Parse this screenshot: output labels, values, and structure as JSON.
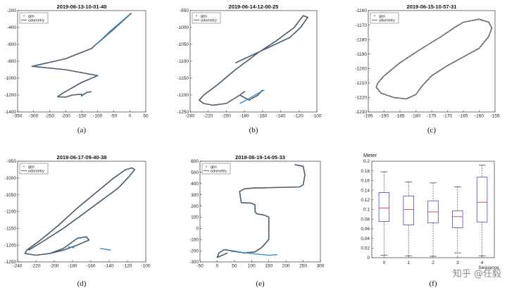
{
  "watermark": "知乎 @任毅",
  "chart_data": [
    {
      "type": "line",
      "caption": "(a)",
      "title": "2019-06-13-10-01-40",
      "legend": {
        "entries": [
          "gps",
          "odometry"
        ],
        "placement": "top-left"
      },
      "xlim": [
        -350,
        50
      ],
      "ylim": [
        -1400,
        -200
      ],
      "xticks": [
        -350,
        -300,
        -250,
        -200,
        -150,
        -100,
        -50,
        0,
        50
      ],
      "yticks": [
        -1400,
        -1200,
        -1000,
        -800,
        -600,
        -400,
        -200
      ],
      "series": [
        {
          "style": "odometry",
          "points": [
            [
              5,
              -230
            ],
            [
              -50,
              -420
            ],
            [
              -120,
              -650
            ],
            [
              -200,
              -770
            ],
            [
              -305,
              -860
            ],
            [
              -200,
              -900
            ],
            [
              -100,
              -970
            ],
            [
              -150,
              -1050
            ],
            [
              -210,
              -1180
            ],
            [
              -225,
              -1220
            ],
            [
              -200,
              -1225
            ],
            [
              -180,
              -1200
            ],
            [
              -150,
              -1190
            ],
            [
              -150,
              -1210
            ],
            [
              -135,
              -1170
            ],
            [
              -120,
              -1160
            ]
          ]
        },
        {
          "style": "gps",
          "points": [
            [
              0,
              -245
            ],
            [
              -60,
              -440
            ],
            [
              -110,
              -620
            ]
          ]
        }
      ]
    },
    {
      "type": "line",
      "caption": "(b)",
      "title": "2019-06-14-12-00-25",
      "legend": {
        "entries": [
          "gps",
          "odometry"
        ],
        "placement": "top-left"
      },
      "xlim": [
        -240,
        -100
      ],
      "ylim": [
        -1250,
        -950
      ],
      "xticks": [
        -240,
        -220,
        -200,
        -180,
        -160,
        -140,
        -120,
        -100
      ],
      "yticks": [
        -1250,
        -1200,
        -1150,
        -1100,
        -1050,
        -1000,
        -950
      ],
      "series": [
        {
          "style": "odometry",
          "points": [
            [
              -190,
              -1105
            ],
            [
              -170,
              -1080
            ],
            [
              -150,
              -1055
            ],
            [
              -130,
              -1030
            ],
            [
              -118,
              -1000
            ],
            [
              -110,
              -970
            ],
            [
              -115,
              -965
            ],
            [
              -118,
              -975
            ],
            [
              -125,
              -1000
            ],
            [
              -145,
              -1040
            ],
            [
              -165,
              -1075
            ],
            [
              -190,
              -1125
            ],
            [
              -210,
              -1170
            ],
            [
              -225,
              -1200
            ],
            [
              -230,
              -1215
            ],
            [
              -225,
              -1225
            ],
            [
              -215,
              -1230
            ],
            [
              -200,
              -1225
            ],
            [
              -185,
              -1200
            ],
            [
              -180,
              -1190
            ],
            [
              -185,
              -1200
            ],
            [
              -175,
              -1215
            ],
            [
              -165,
              -1200
            ],
            [
              -160,
              -1185
            ]
          ]
        },
        {
          "style": "gps",
          "points": [
            [
              -185,
              -1225
            ],
            [
              -175,
              -1210
            ],
            [
              -165,
              -1195
            ],
            [
              -158,
              -1185
            ]
          ]
        }
      ]
    },
    {
      "type": "line",
      "caption": "(c)",
      "title": "2019-06-15-10-57-31",
      "legend": {
        "entries": [
          "gps",
          "odometry"
        ],
        "placement": "top-left"
      },
      "xlim": [
        -195,
        -155
      ],
      "ylim": [
        -1230,
        -1160
      ],
      "xticks": [
        -195,
        -190,
        -185,
        -180,
        -175,
        -170,
        -165,
        -160,
        -155
      ],
      "yticks": [
        -1230,
        -1220,
        -1210,
        -1200,
        -1190,
        -1180,
        -1170,
        -1160
      ],
      "series": [
        {
          "style": "odometry",
          "points": [
            [
              -192,
              -1210
            ],
            [
              -190,
              -1205
            ],
            [
              -185,
              -1196
            ],
            [
              -178,
              -1186
            ],
            [
              -172,
              -1178
            ],
            [
              -168,
              -1172
            ],
            [
              -165,
              -1168
            ],
            [
              -160,
              -1166
            ],
            [
              -157,
              -1168
            ],
            [
              -156,
              -1172
            ],
            [
              -157,
              -1178
            ],
            [
              -160,
              -1186
            ],
            [
              -165,
              -1192
            ],
            [
              -170,
              -1198
            ],
            [
              -175,
              -1205
            ],
            [
              -178,
              -1212
            ],
            [
              -180,
              -1218
            ],
            [
              -183,
              -1221
            ],
            [
              -187,
              -1220
            ],
            [
              -191,
              -1217
            ],
            [
              -192.5,
              -1213
            ],
            [
              -192,
              -1210
            ]
          ]
        }
      ]
    },
    {
      "type": "line",
      "caption": "(d)",
      "title": "2019-06-17-09-40-38",
      "legend": {
        "entries": [
          "gps",
          "odometry"
        ],
        "placement": "top-left"
      },
      "xlim": [
        -240,
        -100
      ],
      "ylim": [
        -1250,
        -950
      ],
      "xticks": [
        -240,
        -220,
        -200,
        -180,
        -160,
        -140,
        -120,
        -100
      ],
      "yticks": [
        -1250,
        -1200,
        -1150,
        -1100,
        -1050,
        -1000,
        -950
      ],
      "series": [
        {
          "style": "odometry",
          "points": [
            [
              -228,
              -1215
            ],
            [
              -210,
              -1185
            ],
            [
              -190,
              -1150
            ],
            [
              -170,
              -1110
            ],
            [
              -150,
              -1070
            ],
            [
              -130,
              -1030
            ],
            [
              -118,
              -995
            ],
            [
              -112,
              -975
            ],
            [
              -115,
              -970
            ],
            [
              -122,
              -975
            ],
            [
              -135,
              -1000
            ],
            [
              -155,
              -1045
            ],
            [
              -175,
              -1090
            ],
            [
              -195,
              -1140
            ],
            [
              -215,
              -1185
            ],
            [
              -230,
              -1215
            ],
            [
              -232,
              -1225
            ],
            [
              -220,
              -1230
            ],
            [
              -205,
              -1225
            ],
            [
              -190,
              -1210
            ],
            [
              -175,
              -1180
            ],
            [
              -165,
              -1175
            ],
            [
              -162,
              -1185
            ],
            [
              -175,
              -1200
            ],
            [
              -190,
              -1215
            ],
            [
              -205,
              -1225
            ]
          ]
        },
        {
          "style": "gps",
          "points": [
            [
              -150,
              -1210
            ],
            [
              -138,
              -1215
            ]
          ]
        },
        {
          "style": "gps",
          "points": [
            [
              -185,
              -1205
            ],
            [
              -178,
              -1208
            ]
          ]
        }
      ]
    },
    {
      "type": "line",
      "caption": "(e)",
      "title": "2019-06-19-14-05-33",
      "legend": {
        "entries": [
          "gps",
          "odometry"
        ],
        "placement": "top-left"
      },
      "xlim": [
        -50,
        300
      ],
      "ylim": [
        -300,
        600
      ],
      "xticks": [
        -50,
        0,
        50,
        100,
        150,
        200,
        250,
        300
      ],
      "yticks": [
        -300,
        -200,
        -100,
        0,
        100,
        200,
        300,
        400,
        500,
        600
      ],
      "series": [
        {
          "style": "odometry",
          "points": [
            [
              225,
              570
            ],
            [
              250,
              555
            ],
            [
              255,
              480
            ],
            [
              250,
              390
            ],
            [
              240,
              370
            ],
            [
              110,
              360
            ],
            [
              80,
              355
            ],
            [
              65,
              330
            ],
            [
              70,
              230
            ],
            [
              100,
              225
            ],
            [
              110,
              210
            ],
            [
              110,
              150
            ],
            [
              115,
              130
            ],
            [
              135,
              120
            ],
            [
              150,
              100
            ],
            [
              150,
              -100
            ],
            [
              130,
              -170
            ],
            [
              110,
              -210
            ],
            [
              80,
              -220
            ],
            [
              60,
              -210
            ],
            [
              40,
              -200
            ],
            [
              20,
              -190
            ],
            [
              5,
              -220
            ],
            [
              0,
              -260
            ],
            [
              15,
              -240
            ],
            [
              30,
              -220
            ]
          ]
        },
        {
          "style": "gps",
          "points": [
            [
              40,
              -205
            ],
            [
              100,
              -225
            ],
            [
              150,
              -240
            ],
            [
              175,
              -235
            ]
          ]
        }
      ]
    },
    {
      "type": "box",
      "caption": "(f)",
      "ylabel": "Meter",
      "xlabel": "Sequence",
      "ylim": [
        0,
        0.2
      ],
      "yticks": [
        0,
        0.02,
        0.04,
        0.06,
        0.08,
        0.1,
        0.12,
        0.14,
        0.16,
        0.18,
        0.2
      ],
      "categories": [
        "0",
        "1",
        "2",
        "3",
        "4"
      ],
      "boxes": [
        {
          "min": 0.005,
          "q1": 0.075,
          "median": 0.103,
          "q3": 0.135,
          "max": 0.178
        },
        {
          "min": 0.004,
          "q1": 0.068,
          "median": 0.1,
          "q3": 0.128,
          "max": 0.157
        },
        {
          "min": 0.003,
          "q1": 0.072,
          "median": 0.095,
          "q3": 0.118,
          "max": 0.155
        },
        {
          "min": 0.01,
          "q1": 0.062,
          "median": 0.085,
          "q3": 0.097,
          "max": 0.147
        },
        {
          "min": 0.004,
          "q1": 0.074,
          "median": 0.115,
          "q3": 0.167,
          "max": 0.192
        }
      ]
    }
  ],
  "colors": {
    "odometry": "#3d4f63",
    "gps": "#2a86c8",
    "box": "#4a4ac8",
    "median": "#d04040",
    "grid": "#888888"
  }
}
